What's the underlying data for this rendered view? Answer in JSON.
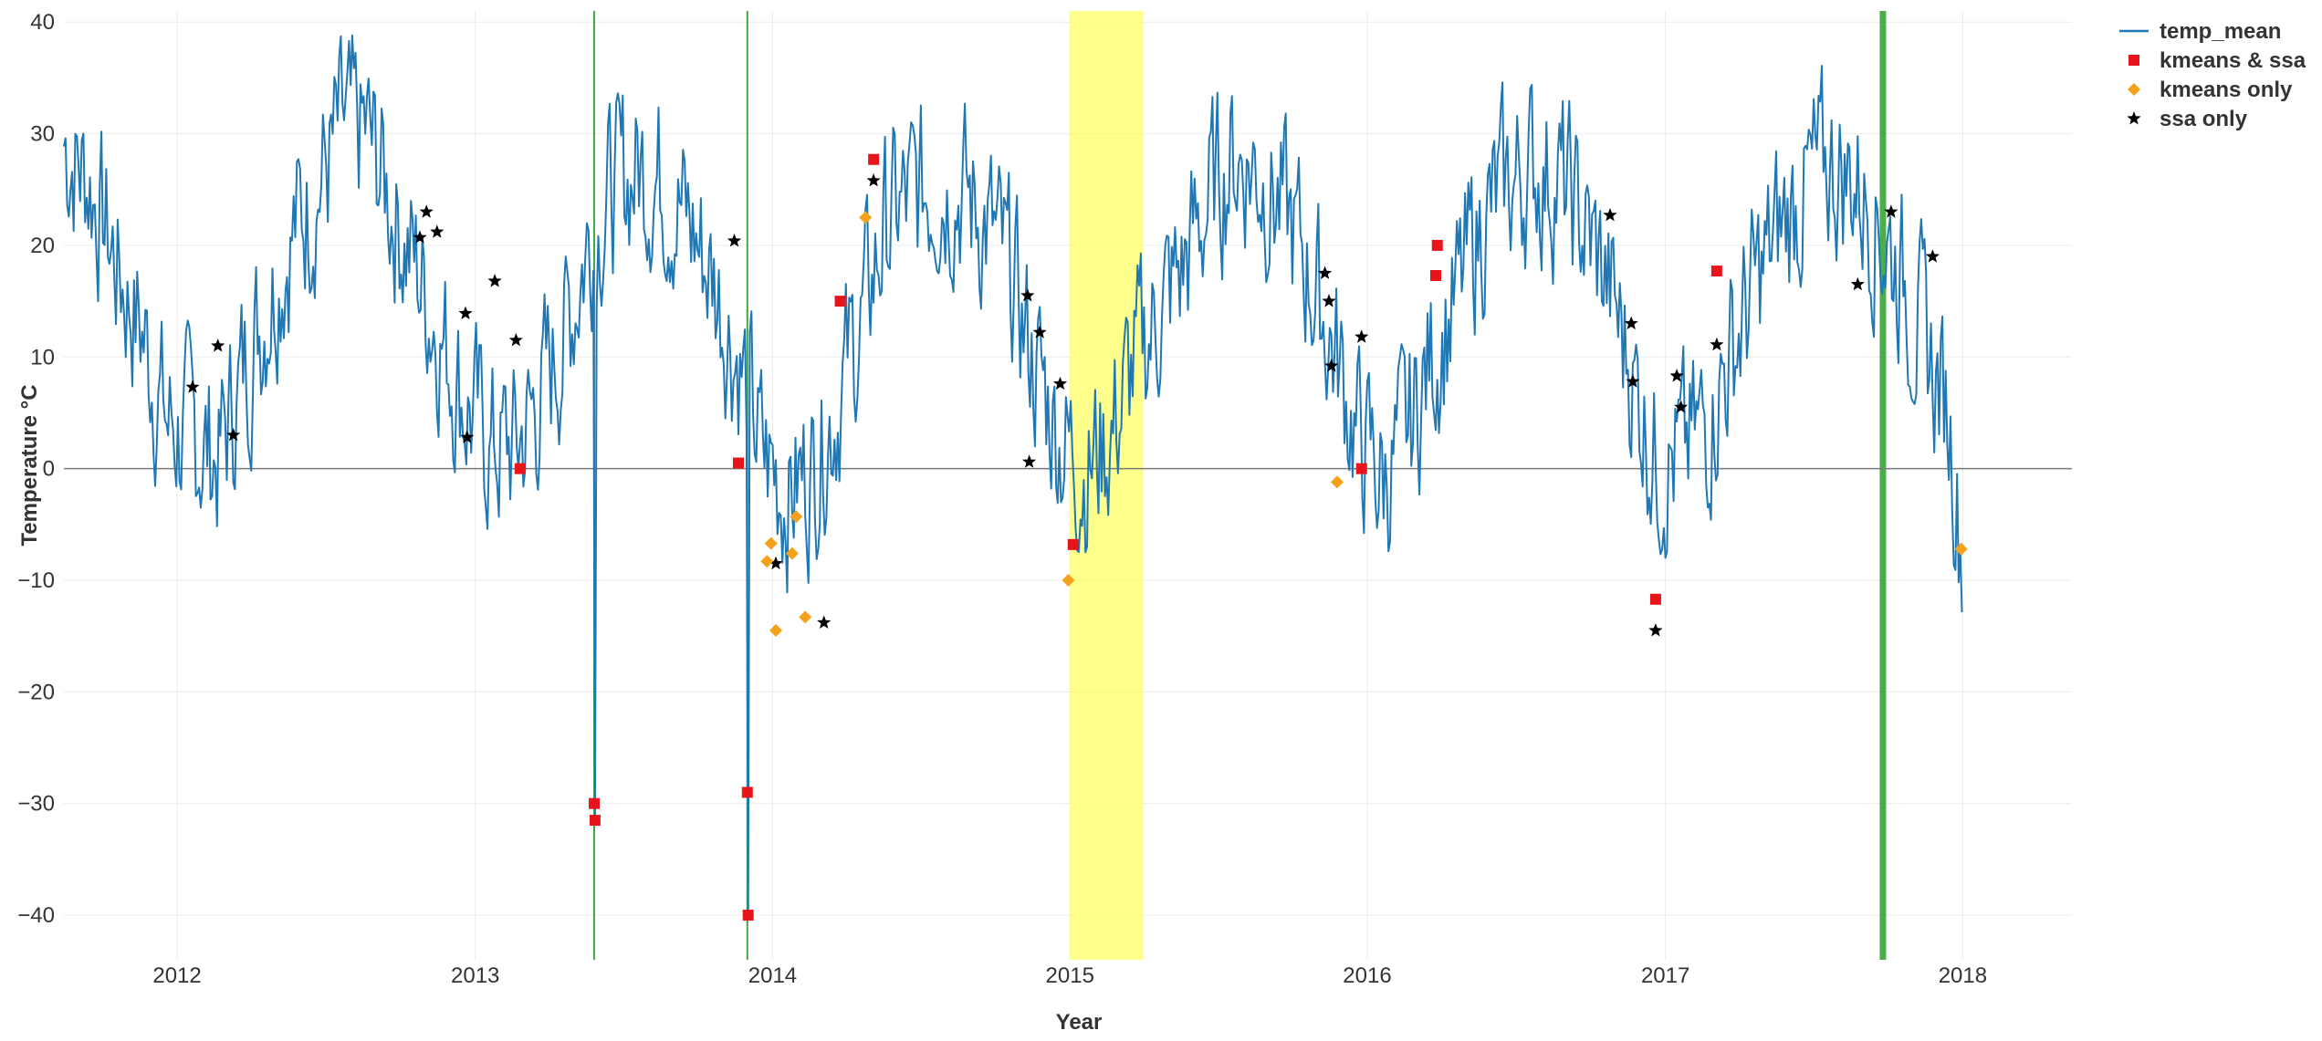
{
  "chart_data": {
    "type": "line",
    "title": "",
    "xlabel": "Year",
    "ylabel": "Temperature °C",
    "xlim": [
      "2011-08-15",
      "2018-05-15"
    ],
    "ylim": [
      -44,
      41
    ],
    "x_ticks": [
      "2012",
      "2013",
      "2014",
      "2015",
      "2016",
      "2017",
      "2018"
    ],
    "y_ticks": [
      40,
      30,
      20,
      10,
      0,
      -10,
      -20,
      -30,
      -40
    ],
    "grid": true,
    "zero_line": true,
    "legend_position": "top-right",
    "colors": {
      "temp_mean": "#1f77b4",
      "kmeans_ssa": "#e8141b",
      "kmeans_only": "#f5a21b",
      "ssa_only": "#000000",
      "vline": "#2ca02c",
      "span": "#ffff66"
    },
    "series": [
      {
        "name": "temp_mean",
        "kind": "line",
        "anchors": [
          [
            "2011-08-15",
            29
          ],
          [
            "2011-09-15",
            26
          ],
          [
            "2011-10-20",
            18
          ],
          [
            "2011-11-20",
            12
          ],
          [
            "2011-12-20",
            4
          ],
          [
            "2012-01-20",
            3
          ],
          [
            "2012-02-20",
            1
          ],
          [
            "2012-03-20",
            8
          ],
          [
            "2012-04-20",
            15
          ],
          [
            "2012-05-20",
            21
          ],
          [
            "2012-06-20",
            25
          ],
          [
            "2012-07-20",
            30
          ],
          [
            "2012-08-20",
            30
          ],
          [
            "2012-09-20",
            24
          ],
          [
            "2012-10-20",
            18
          ],
          [
            "2012-11-20",
            12
          ],
          [
            "2012-12-20",
            6
          ],
          [
            "2013-01-20",
            2
          ],
          [
            "2013-02-20",
            2
          ],
          [
            "2013-03-20",
            6
          ],
          [
            "2013-04-20",
            12
          ],
          [
            "2013-05-25",
            22
          ],
          [
            "2013-06-20",
            25
          ],
          [
            "2013-07-20",
            27
          ],
          [
            "2013-08-20",
            26
          ],
          [
            "2013-09-20",
            22
          ],
          [
            "2013-10-20",
            17
          ],
          [
            "2013-11-20",
            10
          ],
          [
            "2013-12-20",
            1
          ],
          [
            "2014-01-20",
            -2
          ],
          [
            "2014-02-20",
            0
          ],
          [
            "2014-03-20",
            6
          ],
          [
            "2014-04-20",
            13
          ],
          [
            "2014-05-20",
            22
          ],
          [
            "2014-06-20",
            24
          ],
          [
            "2014-07-20",
            26
          ],
          [
            "2014-08-20",
            25
          ],
          [
            "2014-09-20",
            22
          ],
          [
            "2014-10-20",
            17
          ],
          [
            "2014-11-20",
            9
          ],
          [
            "2014-12-20",
            3
          ],
          [
            "2015-01-20",
            0
          ],
          [
            "2015-02-20",
            3
          ],
          [
            "2015-03-20",
            9
          ],
          [
            "2015-04-20",
            14
          ],
          [
            "2015-05-20",
            18
          ],
          [
            "2015-06-20",
            24
          ],
          [
            "2015-07-20",
            28
          ],
          [
            "2015-08-20",
            27
          ],
          [
            "2015-09-20",
            23
          ],
          [
            "2015-10-20",
            18
          ],
          [
            "2015-11-20",
            11
          ],
          [
            "2015-12-20",
            3
          ],
          [
            "2016-01-20",
            -1
          ],
          [
            "2016-02-20",
            3
          ],
          [
            "2016-03-20",
            10
          ],
          [
            "2016-04-20",
            15
          ],
          [
            "2016-05-20",
            22
          ],
          [
            "2016-06-20",
            25
          ],
          [
            "2016-07-20",
            27
          ],
          [
            "2016-08-20",
            26
          ],
          [
            "2016-09-20",
            22
          ],
          [
            "2016-10-20",
            17
          ],
          [
            "2016-11-20",
            9
          ],
          [
            "2016-12-20",
            1
          ],
          [
            "2017-01-20",
            1
          ],
          [
            "2017-02-20",
            4
          ],
          [
            "2017-03-20",
            10
          ],
          [
            "2017-04-20",
            16
          ],
          [
            "2017-05-20",
            21
          ],
          [
            "2017-06-20",
            25
          ],
          [
            "2017-07-20",
            27
          ],
          [
            "2017-08-20",
            26
          ],
          [
            "2017-09-20",
            22
          ],
          [
            "2017-10-20",
            17
          ],
          [
            "2017-11-20",
            10
          ],
          [
            "2017-12-15",
            5
          ],
          [
            "2018-01-01",
            -8
          ]
        ],
        "extremes": [
          [
            "2013-05-27",
            -30
          ],
          [
            "2013-05-28",
            -31.5
          ],
          [
            "2013-12-01",
            -29
          ],
          [
            "2013-12-02",
            -40
          ]
        ]
      },
      {
        "name": "kmeans & ssa",
        "kind": "markers",
        "symbol": "square",
        "points": [
          [
            "2013-02-25",
            0
          ],
          [
            "2013-05-27",
            -30
          ],
          [
            "2013-05-28",
            -31.5
          ],
          [
            "2013-11-20",
            0.5
          ],
          [
            "2013-12-01",
            -29
          ],
          [
            "2013-12-02",
            -40
          ],
          [
            "2014-03-25",
            15
          ],
          [
            "2014-05-05",
            27.7
          ],
          [
            "2015-01-05",
            -6.8
          ],
          [
            "2015-12-25",
            0
          ],
          [
            "2016-03-25",
            17.3
          ],
          [
            "2016-03-27",
            20
          ],
          [
            "2016-12-20",
            -11.7
          ],
          [
            "2017-03-05",
            17.7
          ]
        ]
      },
      {
        "name": "kmeans only",
        "kind": "markers",
        "symbol": "diamond",
        "points": [
          [
            "2013-12-25",
            -8.3
          ],
          [
            "2013-12-30",
            -6.7
          ],
          [
            "2014-01-05",
            -14.5
          ],
          [
            "2014-01-25",
            -7.6
          ],
          [
            "2014-01-30",
            -4.3
          ],
          [
            "2014-02-10",
            -13.3
          ],
          [
            "2014-04-25",
            22.5
          ],
          [
            "2014-12-30",
            -10
          ],
          [
            "2015-11-25",
            -1.2
          ],
          [
            "2017-12-30",
            -7.2
          ]
        ]
      },
      {
        "name": "ssa only",
        "kind": "markers",
        "symbol": "star",
        "points": [
          [
            "2012-01-20",
            7.3
          ],
          [
            "2012-02-20",
            11
          ],
          [
            "2012-03-10",
            3
          ],
          [
            "2012-10-25",
            20.7
          ],
          [
            "2012-11-02",
            23
          ],
          [
            "2012-11-15",
            21.2
          ],
          [
            "2012-12-20",
            13.9
          ],
          [
            "2012-12-22",
            2.8
          ],
          [
            "2013-01-25",
            16.8
          ],
          [
            "2013-02-20",
            11.5
          ],
          [
            "2013-11-15",
            20.4
          ],
          [
            "2014-01-05",
            -8.5
          ],
          [
            "2014-03-05",
            -13.8
          ],
          [
            "2014-05-05",
            25.8
          ],
          [
            "2014-11-10",
            15.5
          ],
          [
            "2014-11-12",
            0.6
          ],
          [
            "2014-11-25",
            12.2
          ],
          [
            "2014-12-20",
            7.6
          ],
          [
            "2015-11-10",
            17.5
          ],
          [
            "2015-11-15",
            15
          ],
          [
            "2015-11-18",
            9.2
          ],
          [
            "2015-12-25",
            11.8
          ],
          [
            "2016-10-25",
            22.7
          ],
          [
            "2016-11-20",
            13
          ],
          [
            "2016-11-22",
            7.8
          ],
          [
            "2016-12-20",
            -14.5
          ],
          [
            "2017-01-15",
            8.3
          ],
          [
            "2017-01-20",
            5.5
          ],
          [
            "2017-03-05",
            11.1
          ],
          [
            "2017-08-25",
            16.5
          ],
          [
            "2017-10-05",
            23
          ],
          [
            "2017-11-25",
            19
          ]
        ]
      }
    ],
    "vertical_lines": [
      {
        "x": "2013-05-27",
        "weight": "thin"
      },
      {
        "x": "2013-12-01",
        "weight": "thin"
      },
      {
        "x": "2017-09-25",
        "weight": "thick"
      }
    ],
    "shaded_spans": [
      {
        "x0": "2015-01-01",
        "x1": "2015-04-01"
      }
    ],
    "legend": [
      {
        "label": "temp_mean",
        "symbol": "line"
      },
      {
        "label": "kmeans & ssa",
        "symbol": "square"
      },
      {
        "label": "kmeans only",
        "symbol": "diamond"
      },
      {
        "label": "ssa only",
        "symbol": "star"
      }
    ]
  }
}
